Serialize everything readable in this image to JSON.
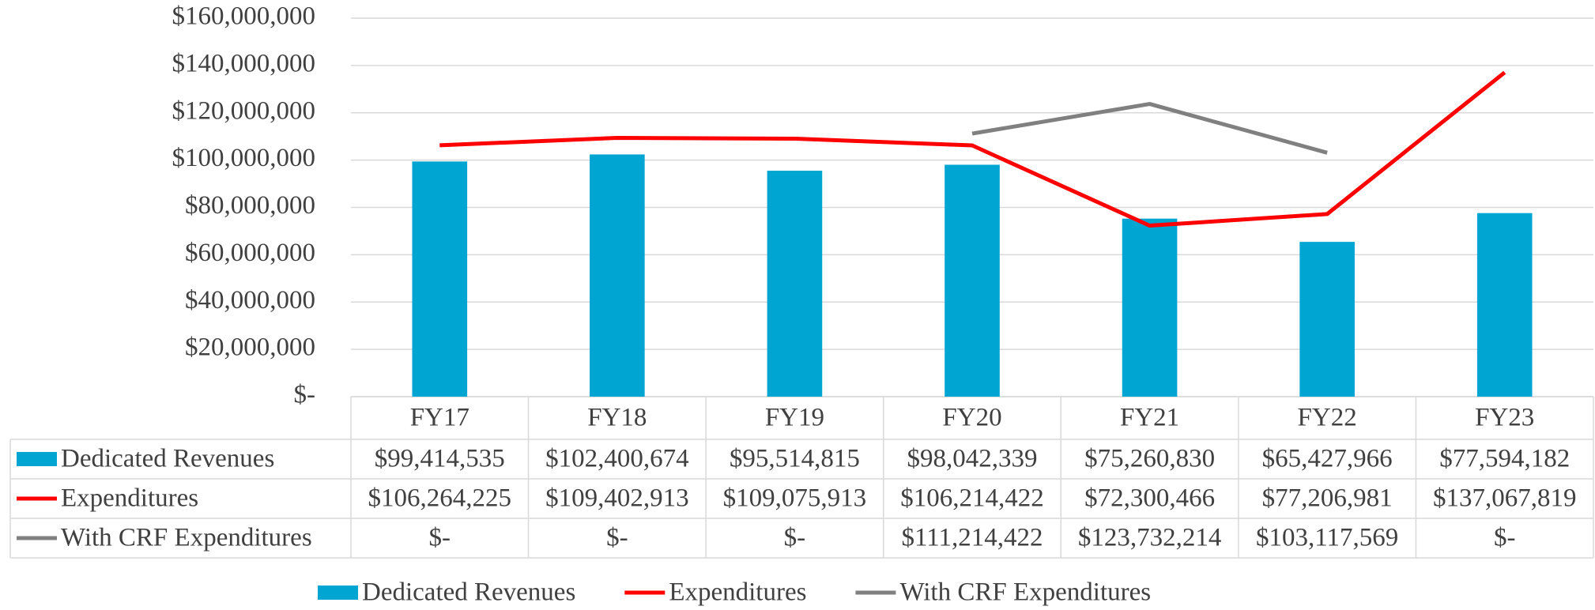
{
  "chart_data": {
    "type": "bar-line",
    "categories": [
      "FY17",
      "FY18",
      "FY19",
      "FY20",
      "FY21",
      "FY22",
      "FY23"
    ],
    "series": [
      {
        "name": "Dedicated Revenues",
        "type": "bar",
        "color": "#00a5d2",
        "values": [
          99414535,
          102400674,
          95514815,
          98042339,
          75260830,
          65427966,
          77594182
        ],
        "value_labels": [
          "$99,414,535",
          "$102,400,674",
          "$95,514,815",
          "$98,042,339",
          "$75,260,830",
          "$65,427,966",
          "$77,594,182"
        ]
      },
      {
        "name": "Expenditures",
        "type": "line",
        "color": "#ff0000",
        "values": [
          106264225,
          109402913,
          109075913,
          106214422,
          72300466,
          77206981,
          137067819
        ],
        "value_labels": [
          "$106,264,225",
          "$109,402,913",
          "$109,075,913",
          "$106,214,422",
          "$72,300,466",
          "$77,206,981",
          "$137,067,819"
        ]
      },
      {
        "name": "With CRF Expenditures",
        "type": "line",
        "color": "#808080",
        "values": [
          null,
          null,
          null,
          111214422,
          123732214,
          103117569,
          null
        ],
        "value_labels": [
          "$-",
          "$-",
          "$-",
          "$111,214,422",
          "$123,732,214",
          "$103,117,569",
          "$-"
        ]
      }
    ],
    "ylim": [
      0,
      160000000
    ],
    "yticks": [
      {
        "value": 0,
        "label": "$-"
      },
      {
        "value": 20000000,
        "label": "$20,000,000"
      },
      {
        "value": 40000000,
        "label": "$40,000,000"
      },
      {
        "value": 60000000,
        "label": "$60,000,000"
      },
      {
        "value": 80000000,
        "label": "$80,000,000"
      },
      {
        "value": 100000000,
        "label": "$100,000,000"
      },
      {
        "value": 120000000,
        "label": "$120,000,000"
      },
      {
        "value": 140000000,
        "label": "$140,000,000"
      },
      {
        "value": 160000000,
        "label": "$160,000,000"
      }
    ],
    "grid": true,
    "legend": "bottom"
  }
}
